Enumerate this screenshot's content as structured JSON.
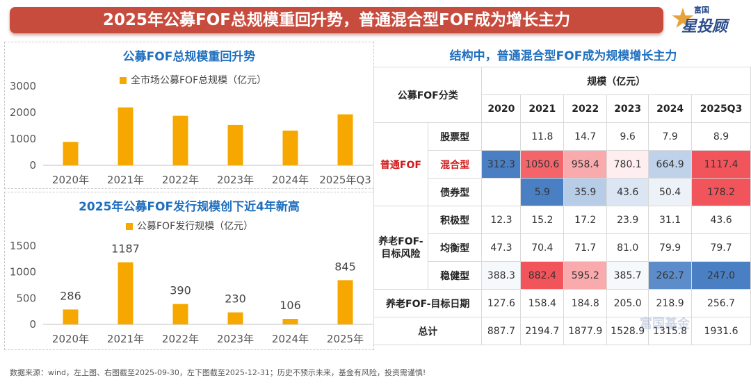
{
  "banner": {
    "title": "2025年公募FOF总规模重回升势，普通混合型FOF成为增长主力"
  },
  "brand": {
    "line1": "富国",
    "line2": "星投顾",
    "watermark": "富国基金"
  },
  "colors": {
    "bar": "#f7a800",
    "banner": "#c84c3e",
    "title_blue": "#1f6fbf",
    "high": "#f2545b",
    "low": "#4a7fc4"
  },
  "chart_data": [
    {
      "type": "bar",
      "title": "公募FOF总规模重回升势",
      "legend": "全市场公募FOF总规模（亿元）",
      "categories": [
        "2020年",
        "2021年",
        "2022年",
        "2023年",
        "2024年",
        "2025年Q3"
      ],
      "values": [
        887.7,
        2194.7,
        1877.9,
        1528.9,
        1315.8,
        1931.6
      ],
      "yticks": [
        "0",
        "1000",
        "2000",
        "3000"
      ],
      "ylim": [
        0,
        3000
      ],
      "grid": false
    },
    {
      "type": "bar",
      "title": "2025年公募FOF发行规模创下近4年新高",
      "legend": "公募FOF发行规模（亿元）",
      "categories": [
        "2020年",
        "2021年",
        "2022年",
        "2023年",
        "2024年",
        "2025年"
      ],
      "values": [
        286,
        1187,
        390,
        230,
        106,
        845
      ],
      "labels": [
        "286",
        "1187",
        "390",
        "230",
        "106",
        "845"
      ],
      "yticks": [
        "0",
        "500",
        "1000",
        "1500"
      ],
      "ylim": [
        0,
        1500
      ],
      "grid": false
    }
  ],
  "table": {
    "title": "结构中，普通混合型FOF成为规模增长主力",
    "corner": "公募FOF分类",
    "scale_header": "规模（亿元）",
    "years": [
      "2020",
      "2021",
      "2022",
      "2023",
      "2024",
      "2025Q3"
    ],
    "groups": {
      "ordinary": "普通FOF",
      "pension": "养老FOF-目标风险",
      "target_date": "养老FOF-目标日期",
      "total": "总计"
    },
    "rows": [
      {
        "sub": "股票型",
        "values": [
          "",
          "11.8",
          "14.7",
          "9.6",
          "7.9",
          "8.9"
        ],
        "heat": [
          null,
          null,
          null,
          null,
          null,
          null
        ]
      },
      {
        "sub": "混合型",
        "values": [
          "312.3",
          "1050.6",
          "958.4",
          "780.1",
          "664.9",
          "1117.4"
        ],
        "heat": [
          -1,
          0.9,
          0.5,
          0.1,
          -0.35,
          1
        ]
      },
      {
        "sub": "债券型",
        "values": [
          "",
          "5.9",
          "35.9",
          "43.6",
          "50.4",
          "178.2"
        ],
        "heat": [
          null,
          -1,
          -0.4,
          -0.2,
          -0.1,
          1
        ]
      },
      {
        "sub": "积极型",
        "values": [
          "12.3",
          "15.2",
          "17.2",
          "23.9",
          "31.1",
          "43.6"
        ],
        "heat": [
          null,
          null,
          null,
          null,
          null,
          null
        ]
      },
      {
        "sub": "均衡型",
        "values": [
          "47.3",
          "70.4",
          "71.7",
          "81.0",
          "79.9",
          "79.7"
        ],
        "heat": [
          null,
          null,
          null,
          null,
          null,
          null
        ]
      },
      {
        "sub": "稳健型",
        "values": [
          "388.3",
          "882.4",
          "595.2",
          "385.7",
          "262.7",
          "247.0"
        ],
        "heat": [
          -0.05,
          1,
          0.5,
          -0.05,
          -0.9,
          -1
        ]
      },
      {
        "sub": "",
        "values": [
          "127.6",
          "158.4",
          "184.8",
          "205.0",
          "218.9",
          "256.7"
        ],
        "heat": [
          null,
          null,
          null,
          null,
          null,
          null
        ]
      },
      {
        "sub": "",
        "values": [
          "887.7",
          "2194.7",
          "1877.9",
          "1528.9",
          "1315.8",
          "1931.6"
        ],
        "heat": [
          null,
          null,
          null,
          null,
          null,
          null
        ]
      }
    ]
  },
  "footer": "数据来源：wind，左上图、右图截至2025-09-30，左下图截至2025-12-31；历史不预示未来，基金有风险，投资需谨慎!"
}
